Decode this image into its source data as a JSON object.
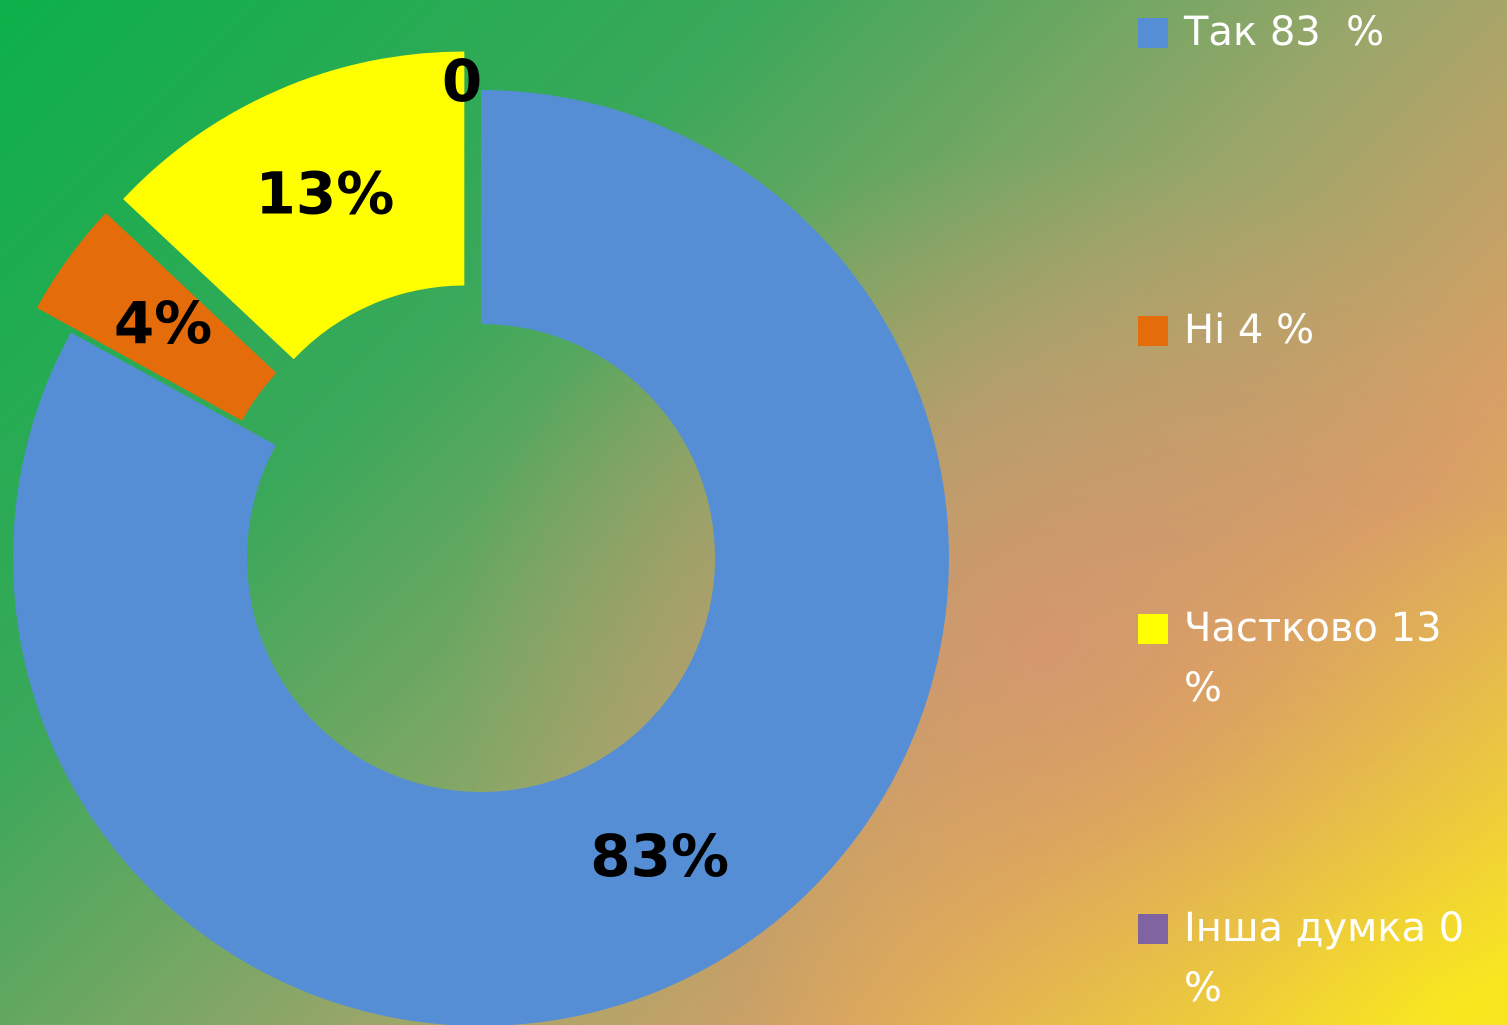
{
  "chart_data": {
    "type": "donut",
    "categories": [
      "Так 83  %",
      "Ні 4 %",
      "Частково 13 %",
      "Інша думка 0 %"
    ],
    "values": [
      83,
      4,
      13,
      0
    ],
    "value_labels": [
      "83%",
      "4%",
      "13%",
      "0"
    ],
    "colors": [
      "#558ed5",
      "#e46c0a",
      "#ffff00",
      "#8064a2"
    ],
    "legend": "right"
  }
}
